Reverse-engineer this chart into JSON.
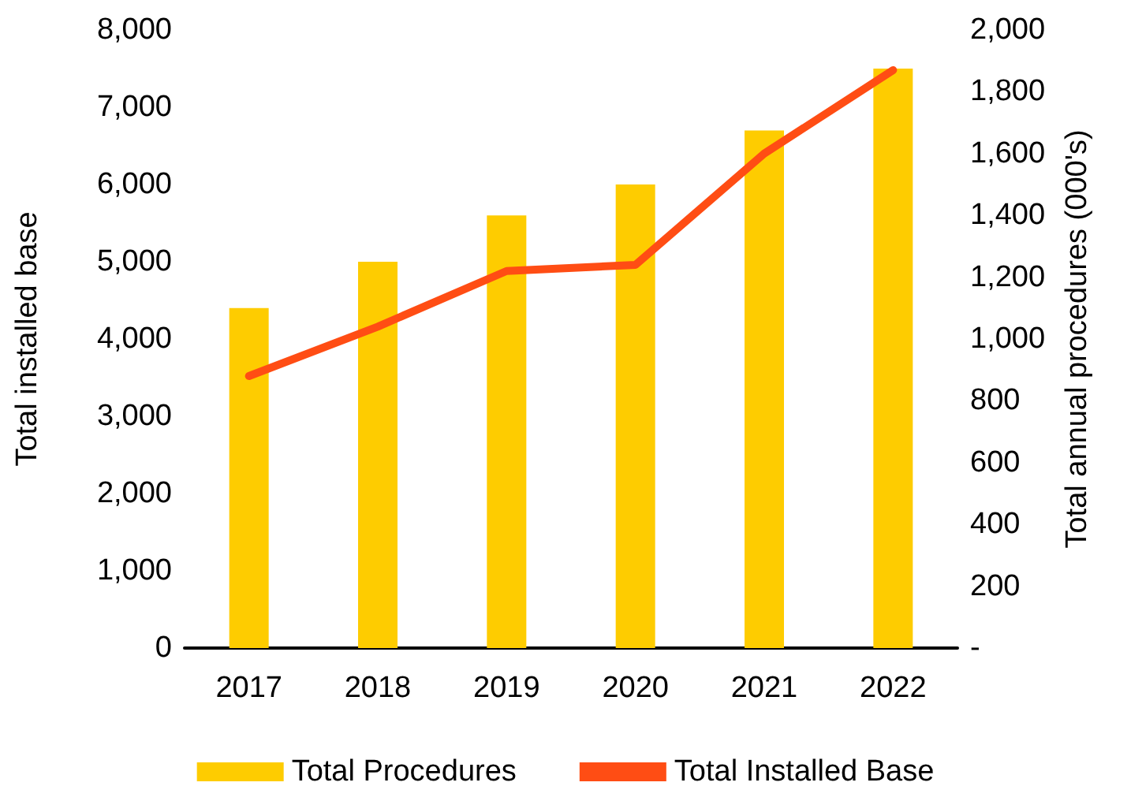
{
  "chart_data": {
    "type": "bar",
    "ylabel": "Total installed base",
    "y2label": "Total annual procedures (000's)",
    "categories": [
      "2017",
      "2018",
      "2019",
      "2020",
      "2021",
      "2022"
    ],
    "series": [
      {
        "name": "Total Procedures",
        "color": "#fecc00",
        "values": [
          4400,
          5000,
          5600,
          6000,
          6700,
          7500
        ]
      },
      {
        "name": "Total Installed Base",
        "type": "line",
        "axis": "y2",
        "color": "#ff4d14",
        "values": [
          880,
          1040,
          1220,
          1240,
          1600,
          1870
        ]
      }
    ],
    "ylim": [
      0,
      8000
    ],
    "yticks": [
      0,
      {
        "value": 1000,
        "label": "1,000"
      },
      {
        "value": 2000,
        "label": "2,000"
      },
      {
        "value": 3000,
        "label": "3,000"
      },
      {
        "value": 4000,
        "label": "4,000"
      },
      {
        "value": 5000,
        "label": "5,000"
      },
      {
        "value": 6000,
        "label": "6,000"
      },
      {
        "value": 7000,
        "label": "7,000"
      },
      {
        "value": 8000,
        "label": "8,000"
      }
    ],
    "y2lim": [
      0,
      2000
    ],
    "y2ticks": [
      {
        "value": 0,
        "label": "-"
      },
      200,
      400,
      600,
      800,
      {
        "value": 1000,
        "label": "1,000"
      },
      {
        "value": 1200,
        "label": "1,200"
      },
      {
        "value": 1400,
        "label": "1,400"
      },
      {
        "value": 1600,
        "label": "1,600"
      },
      {
        "value": 1800,
        "label": "1,800"
      },
      {
        "value": 2000,
        "label": "2,000"
      }
    ],
    "grid": false,
    "legend": "bottom",
    "marker": "none"
  }
}
